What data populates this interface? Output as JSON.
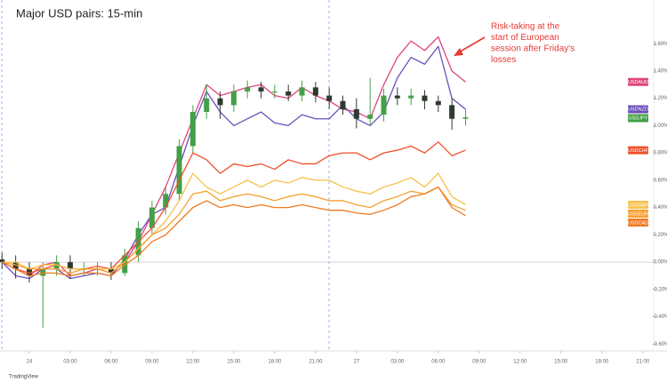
{
  "chart_data": {
    "type": "line",
    "title": "Major USD pairs: 15-min",
    "annotation": [
      "Risk-taking at the",
      "start of European",
      "session after Friday's",
      "losses"
    ],
    "annotation_color": "#e53935",
    "watermark": "TradingView",
    "x": [
      -2,
      -1,
      0,
      1,
      2,
      3,
      4,
      5,
      6,
      7,
      8,
      9,
      10,
      11,
      12,
      13,
      14,
      15,
      16,
      17,
      18,
      19,
      20,
      21,
      22,
      23,
      24,
      25,
      26,
      27,
      28,
      29,
      30,
      31,
      32
    ],
    "xlim": [
      -2.15,
      45.8
    ],
    "xticks": [
      {
        "value": 0,
        "label": "24"
      },
      {
        "value": 3,
        "label": "03:00"
      },
      {
        "value": 6,
        "label": "06:00"
      },
      {
        "value": 9,
        "label": "09:00"
      },
      {
        "value": 12,
        "label": "12:00"
      },
      {
        "value": 15,
        "label": "15:00"
      },
      {
        "value": 18,
        "label": "18:00"
      },
      {
        "value": 21,
        "label": "21:00"
      },
      {
        "value": 24,
        "label": "27"
      },
      {
        "value": 27,
        "label": "03:00"
      },
      {
        "value": 30,
        "label": "06:00"
      },
      {
        "value": 33,
        "label": "09:00"
      },
      {
        "value": 36,
        "label": "12:00"
      },
      {
        "value": 39,
        "label": "15:00"
      },
      {
        "value": 42,
        "label": "18:00"
      },
      {
        "value": 45,
        "label": "21:00"
      }
    ],
    "ylim": [
      -0.65,
      1.92
    ],
    "yticks": [
      {
        "value": -0.6,
        "label": "-0.60%"
      },
      {
        "value": -0.4,
        "label": "-0.40%"
      },
      {
        "value": -0.2,
        "label": "-0.20%"
      },
      {
        "value": 0,
        "label": "0.00%"
      },
      {
        "value": 0.2,
        "label": "0.20%"
      },
      {
        "value": 0.4,
        "label": "0.40%"
      },
      {
        "value": 0.6,
        "label": "0.60%"
      },
      {
        "value": 0.8,
        "label": "0.80%"
      },
      {
        "value": 1.0,
        "label": "1.00%"
      },
      {
        "value": 1.2,
        "label": "1.20%"
      },
      {
        "value": 1.4,
        "label": "1.40%"
      },
      {
        "value": 1.6,
        "label": "1.60%"
      }
    ],
    "series": [
      {
        "name": "USDAUD",
        "color": "#e0457b",
        "values": [
          0.0,
          -0.05,
          -0.1,
          -0.02,
          0.0,
          -0.1,
          -0.08,
          -0.05,
          -0.08,
          0.0,
          0.15,
          0.35,
          0.55,
          0.8,
          1.05,
          1.3,
          1.22,
          1.25,
          1.28,
          1.3,
          1.22,
          1.2,
          1.28,
          1.22,
          1.18,
          1.12,
          1.1,
          1.05,
          1.3,
          1.5,
          1.62,
          1.55,
          1.65,
          1.4,
          1.32
        ]
      },
      {
        "name": "USDNZD",
        "color": "#6b4fbb",
        "values": [
          0.0,
          -0.1,
          -0.12,
          -0.05,
          -0.05,
          -0.12,
          -0.1,
          -0.08,
          -0.1,
          0.02,
          0.2,
          0.35,
          0.4,
          0.7,
          1.0,
          1.25,
          1.1,
          1.0,
          1.05,
          1.1,
          1.02,
          1.0,
          1.08,
          1.05,
          1.05,
          1.15,
          1.05,
          1.0,
          1.1,
          1.35,
          1.5,
          1.45,
          1.58,
          1.2,
          1.12
        ]
      },
      {
        "name": "USDJPY",
        "type": "candlestick",
        "color": "#43a047",
        "down_color": "#2f3a2f",
        "open": [
          0.02,
          0.0,
          -0.05,
          -0.1,
          -0.05,
          0.0,
          -0.05,
          -0.05,
          -0.05,
          -0.08,
          0.05,
          0.25,
          0.4,
          0.5,
          0.85,
          1.1,
          1.2,
          1.15,
          1.25,
          1.28,
          1.25,
          1.25,
          1.22,
          1.28,
          1.22,
          1.18,
          1.12,
          1.05,
          1.08,
          1.22,
          1.2,
          1.22,
          1.18,
          1.15,
          1.05
        ],
        "high": [
          0.07,
          0.05,
          0.0,
          0.0,
          0.05,
          0.05,
          0.0,
          0.0,
          0.0,
          0.1,
          0.3,
          0.45,
          0.55,
          0.9,
          1.15,
          1.3,
          1.25,
          1.3,
          1.33,
          1.32,
          1.3,
          1.3,
          1.33,
          1.32,
          1.28,
          1.22,
          1.2,
          1.35,
          1.27,
          1.28,
          1.27,
          1.26,
          1.22,
          1.2,
          1.12
        ],
        "low": [
          -0.05,
          -0.12,
          -0.15,
          -0.48,
          -0.1,
          -0.12,
          -0.1,
          -0.1,
          -0.13,
          -0.1,
          0.0,
          0.2,
          0.35,
          0.45,
          0.8,
          1.05,
          1.05,
          1.1,
          1.2,
          1.2,
          1.2,
          1.18,
          1.18,
          1.17,
          1.12,
          1.08,
          0.98,
          1.0,
          1.03,
          1.15,
          1.15,
          1.12,
          1.1,
          0.97,
          1.0
        ],
        "close": [
          0.0,
          -0.05,
          -0.1,
          -0.05,
          0.0,
          -0.05,
          -0.05,
          -0.05,
          -0.08,
          0.05,
          0.25,
          0.4,
          0.5,
          0.85,
          1.1,
          1.2,
          1.15,
          1.25,
          1.28,
          1.25,
          1.25,
          1.22,
          1.28,
          1.22,
          1.18,
          1.12,
          1.05,
          1.08,
          1.22,
          1.2,
          1.22,
          1.18,
          1.15,
          1.05,
          1.06
        ]
      },
      {
        "name": "USDCHF",
        "color": "#f0502a",
        "values": [
          0.0,
          -0.05,
          -0.08,
          -0.05,
          -0.02,
          -0.05,
          -0.05,
          -0.03,
          -0.05,
          0.05,
          0.15,
          0.25,
          0.4,
          0.6,
          0.8,
          0.75,
          0.65,
          0.72,
          0.7,
          0.72,
          0.68,
          0.75,
          0.72,
          0.72,
          0.78,
          0.8,
          0.8,
          0.75,
          0.8,
          0.82,
          0.85,
          0.8,
          0.88,
          0.78,
          0.82
        ]
      },
      {
        "name": "USDGBP",
        "color": "#f7c04a",
        "values": [
          0.0,
          0.0,
          -0.05,
          -0.02,
          -0.02,
          -0.05,
          -0.05,
          -0.05,
          -0.05,
          0.0,
          0.1,
          0.2,
          0.3,
          0.45,
          0.65,
          0.55,
          0.5,
          0.55,
          0.6,
          0.55,
          0.6,
          0.58,
          0.62,
          0.6,
          0.6,
          0.55,
          0.52,
          0.5,
          0.55,
          0.58,
          0.62,
          0.55,
          0.65,
          0.48,
          0.42
        ]
      },
      {
        "name": "USDEUR",
        "color": "#f5a030",
        "values": [
          0.0,
          -0.02,
          -0.05,
          -0.05,
          -0.05,
          -0.08,
          -0.05,
          -0.05,
          -0.08,
          0.0,
          0.1,
          0.2,
          0.25,
          0.35,
          0.5,
          0.52,
          0.45,
          0.48,
          0.5,
          0.48,
          0.45,
          0.48,
          0.5,
          0.48,
          0.45,
          0.45,
          0.42,
          0.4,
          0.45,
          0.48,
          0.52,
          0.5,
          0.55,
          0.42,
          0.38
        ]
      },
      {
        "name": "USDCAD",
        "color": "#f07a22",
        "values": [
          0.0,
          -0.05,
          -0.1,
          -0.08,
          -0.08,
          -0.1,
          -0.08,
          -0.08,
          -0.1,
          -0.02,
          0.05,
          0.15,
          0.2,
          0.3,
          0.4,
          0.45,
          0.4,
          0.42,
          0.4,
          0.42,
          0.4,
          0.4,
          0.42,
          0.4,
          0.38,
          0.38,
          0.36,
          0.35,
          0.38,
          0.42,
          0.48,
          0.5,
          0.55,
          0.4,
          0.34
        ]
      }
    ]
  }
}
